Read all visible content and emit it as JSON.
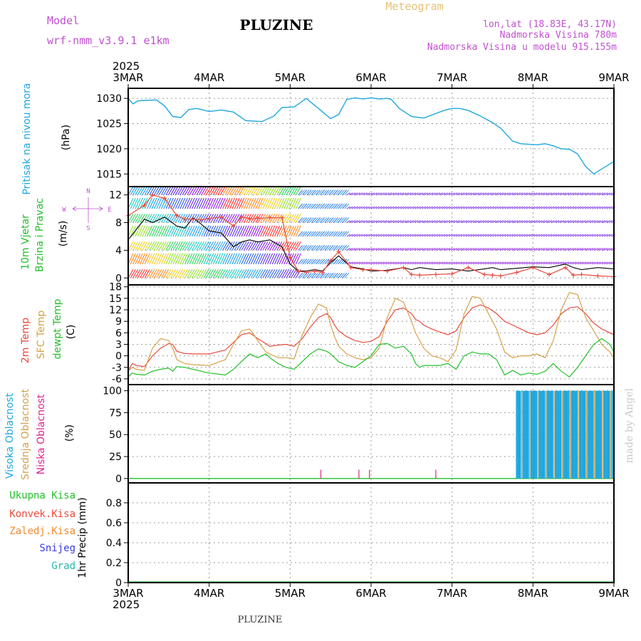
{
  "header": {
    "model_label": "Model",
    "model_name": "wrf-nmm_v3.9.1 e1km",
    "station": "PLUZINE",
    "meteogram": "Meteogram",
    "lonlat": "lon,lat (18.83E, 43.17N)",
    "altitude": "Nadmorska Visina 780m",
    "model_altitude": "Nadmorska Visina u modelu 915.155m"
  },
  "footer": {
    "station": "PLUZINE",
    "watermark": "made by Angel"
  },
  "colors": {
    "pressure": "#1ea7e0",
    "wind_speed": "#000000",
    "gust": "#e84a3c",
    "t2m": "#e84a3c",
    "sfc": "#d4a24a",
    "dewpt": "#22c02a",
    "high_cloud": "#1ea7e0",
    "mid_cloud": "#d4a24a",
    "low_cloud": "#e0248c",
    "rain": "#22c02a",
    "conv": "#e84a3c",
    "frz": "#f08a2c",
    "snow": "#3a3ae0",
    "grad": "#22b8b0",
    "wind_cmp": "#c050d0"
  },
  "chart_data": [
    {
      "type": "line",
      "panel": "pressure",
      "year": "2025",
      "x_ticks": [
        "3MAR",
        "4MAR",
        "5MAR",
        "6MAR",
        "7MAR",
        "8MAR",
        "9MAR"
      ],
      "ylabel_name": "Pritisak na nivou mora",
      "ylabel_unit": "(hPa)",
      "ylim": [
        1012.5,
        1032
      ],
      "y_ticks": [
        "1015",
        "1020",
        "1025",
        "1030"
      ],
      "grid": true,
      "x": [
        0,
        0.06,
        0.12,
        0.2,
        0.35,
        0.45,
        0.55,
        0.65,
        0.75,
        0.85,
        1.0,
        1.15,
        1.3,
        1.45,
        1.65,
        1.8,
        1.9,
        2.05,
        2.2,
        2.35,
        2.5,
        2.6,
        2.7,
        2.8,
        2.9,
        3.0,
        3.1,
        3.2,
        3.25,
        3.35,
        3.5,
        3.65,
        3.8,
        3.9,
        4.0,
        4.1,
        4.2,
        4.35,
        4.5,
        4.6,
        4.75,
        4.85,
        4.95,
        5.05,
        5.15,
        5.25,
        5.35,
        5.45,
        5.55,
        5.65,
        5.75,
        5.85,
        5.95,
        6.0
      ],
      "y": [
        1030,
        1028.9,
        1029.5,
        1029.6,
        1029.7,
        1028.5,
        1026.4,
        1026.2,
        1027.8,
        1028,
        1027.4,
        1027.7,
        1027.3,
        1025.6,
        1025.4,
        1026.5,
        1028.2,
        1028.3,
        1030,
        1028,
        1026,
        1026.8,
        1029.8,
        1030.1,
        1029.9,
        1030.1,
        1029.9,
        1030,
        1029.8,
        1028,
        1026.4,
        1026.1,
        1027,
        1027.6,
        1028,
        1028,
        1027.6,
        1026.5,
        1025.2,
        1024.1,
        1021.5,
        1021,
        1020.9,
        1020.8,
        1021,
        1020.6,
        1020,
        1019.9,
        1019,
        1016.5,
        1015,
        1016,
        1017,
        1017.5
      ],
      "series": [
        {
          "name": "Pritisak na nivou mora"
        }
      ]
    },
    {
      "type": "line",
      "panel": "wind",
      "ylabel_names": [
        "10m Vjetar",
        "Brzina i Pravac"
      ],
      "ylabel_unit": "(m/s)",
      "ylim": [
        -1,
        13.2
      ],
      "y_ticks": [
        "0",
        "4",
        "8",
        "12"
      ],
      "compass": {
        "n": "N",
        "w": "W",
        "e": "E",
        "s": "S"
      },
      "grid": true,
      "speed_x": [
        0,
        0.2,
        0.3,
        0.45,
        0.6,
        0.7,
        0.8,
        0.9,
        1.0,
        1.15,
        1.3,
        1.4,
        1.5,
        1.6,
        1.75,
        1.9,
        2.0,
        2.1,
        2.2,
        2.3,
        2.4,
        2.5,
        2.6,
        2.75,
        2.9,
        3.0,
        3.2,
        3.4,
        3.5,
        3.6,
        3.8,
        4.0,
        4.2,
        4.4,
        4.5,
        4.6,
        4.8,
        5.0,
        5.2,
        5.4,
        5.5,
        5.6,
        5.8,
        6.0
      ],
      "speed_y": [
        5.5,
        8.5,
        8,
        8.8,
        7.5,
        7.2,
        8.7,
        7.8,
        6.8,
        6.5,
        4.5,
        5.2,
        5.5,
        5.2,
        5.5,
        4.5,
        2,
        1,
        1,
        1.2,
        1,
        2.2,
        3.2,
        1.6,
        1.3,
        1,
        1.1,
        1.5,
        1.2,
        1.5,
        1.2,
        1.3,
        1,
        1.3,
        1.5,
        1.2,
        1.4,
        1.6,
        1.5,
        2,
        1.5,
        1.2,
        1.5,
        1.3
      ],
      "gust_y": [
        9,
        10.5,
        12,
        11.5,
        9,
        8.5,
        8.5,
        8.4,
        8.6,
        8.8,
        7.5,
        8.8,
        8.6,
        8.6,
        8.7,
        8.7,
        3,
        1,
        0.8,
        1,
        0.8,
        2.5,
        3.8,
        1.5,
        1.2,
        1.2,
        1,
        1.5,
        0.5,
        0.4,
        0.5,
        0.6,
        1.5,
        0.5,
        0.4,
        0.3,
        0.8,
        1.5,
        0.5,
        1.5,
        0.4,
        0.5,
        0.3,
        0.2
      ],
      "barb_levels": [
        0,
        2,
        4,
        6,
        8,
        10,
        12
      ],
      "series": [
        {
          "name": "10m Vjetar"
        }
      ]
    },
    {
      "type": "line",
      "panel": "temperature",
      "ylabel_names": [
        "2m Temp",
        "SFC Temp",
        "dewpt Temp"
      ],
      "ylabel_unit": "(C)",
      "ylim": [
        -7.5,
        18.5
      ],
      "y_ticks": [
        "-6",
        "-3",
        "0",
        "3",
        "6",
        "9",
        "12",
        "15",
        "18"
      ],
      "grid": true,
      "x": [
        0,
        0.05,
        0.1,
        0.2,
        0.3,
        0.4,
        0.5,
        0.55,
        0.6,
        0.7,
        0.8,
        1.0,
        1.2,
        1.3,
        1.4,
        1.5,
        1.6,
        1.7,
        1.75,
        1.85,
        1.95,
        2.05,
        2.15,
        2.25,
        2.35,
        2.45,
        2.5,
        2.55,
        2.6,
        2.7,
        2.8,
        2.9,
        3.0,
        3.1,
        3.2,
        3.3,
        3.4,
        3.5,
        3.55,
        3.6,
        3.65,
        3.75,
        3.85,
        3.95,
        4.05,
        4.15,
        4.25,
        4.35,
        4.45,
        4.55,
        4.65,
        4.75,
        4.85,
        4.95,
        5.05,
        5.15,
        5.25,
        5.35,
        5.45,
        5.55,
        5.65,
        5.75,
        5.85,
        5.95,
        6.0
      ],
      "t2m": [
        -4,
        -2,
        -2.5,
        -2.8,
        0,
        2,
        3.2,
        3,
        1.2,
        0.6,
        0.5,
        0.5,
        1.5,
        3.5,
        5.5,
        6,
        4.5,
        3.2,
        2.5,
        2.8,
        3,
        2.5,
        4.5,
        7.5,
        10,
        11,
        10,
        8,
        6.5,
        5,
        4,
        3.5,
        3.8,
        5,
        9,
        12,
        12.5,
        11,
        9.5,
        9,
        8,
        7,
        6.2,
        5.5,
        6.5,
        10,
        12.5,
        13.3,
        12.5,
        11,
        9,
        8,
        7,
        6,
        5.5,
        6,
        8,
        11,
        12.5,
        12.8,
        11,
        8.5,
        7,
        6,
        5.5
      ],
      "sfc": [
        -4,
        -3,
        -3.5,
        -3.8,
        2,
        4.5,
        4,
        2,
        -1,
        -2,
        -2.3,
        -2.5,
        -1,
        3,
        6.5,
        7,
        4,
        1,
        0.5,
        -0.5,
        -0.5,
        -0.8,
        5.5,
        10,
        13.5,
        12.5,
        8,
        5,
        2.5,
        0.5,
        -0.5,
        -1,
        -0.5,
        2,
        10,
        15,
        14,
        9,
        6,
        4,
        2,
        0,
        -0.5,
        -1.5,
        1.5,
        11,
        15.5,
        15,
        11,
        7,
        1,
        -0.5,
        0,
        0,
        0.5,
        -0.5,
        4,
        12,
        16.5,
        16,
        10,
        6.5,
        3,
        1,
        -0.5
      ],
      "dewpt": [
        -5.5,
        -4.5,
        -4.8,
        -5,
        -4,
        -3.5,
        -3.2,
        -4,
        -2.8,
        -3,
        -3.5,
        -4.5,
        -5,
        -3.5,
        -1.5,
        0.5,
        -0.5,
        0.5,
        -0.5,
        -2,
        -3,
        -3.5,
        -1.5,
        0.5,
        1.8,
        1.2,
        0.5,
        -0.5,
        -1.5,
        -2.5,
        -3,
        -1.5,
        0,
        3,
        3.2,
        2,
        2.5,
        0.5,
        -2,
        -3,
        -2.5,
        -2.5,
        -2.5,
        -2,
        -3.5,
        0,
        1,
        0.5,
        0.5,
        -1,
        -5,
        -3.8,
        -5,
        -4.5,
        -4.8,
        -4,
        -2,
        -4,
        -5.5,
        -3,
        0,
        3,
        4.5,
        3,
        1
      ]
    },
    {
      "type": "bar",
      "panel": "clouds",
      "ylabel_names": [
        "Visoka Oblacnost",
        "Srednja Oblacnost",
        "Niska Oblacnost"
      ],
      "ylabel_unit": "(%)",
      "ylim": [
        -5,
        107
      ],
      "y_ticks": [
        "0",
        "25",
        "50",
        "75",
        "100"
      ],
      "grid": true,
      "high_cloud": {
        "start": 4.8,
        "end": 6.0,
        "value": 100
      },
      "low_cloud_spikes": [
        {
          "x": 2.38,
          "v": 10
        },
        {
          "x": 2.85,
          "v": 10
        },
        {
          "x": 2.98,
          "v": 10
        },
        {
          "x": 3.8,
          "v": 10
        }
      ]
    },
    {
      "type": "bar",
      "panel": "precip",
      "ylabel_names": [
        "Ukupna Kisa",
        "Konvek.Kisa",
        "Zaledj.Kisa",
        "Snijeg",
        "Grad"
      ],
      "ylabel_unit": "1hr Precip (mm)",
      "ylim": [
        0,
        1.0
      ],
      "y_ticks": [
        "0",
        "0.2",
        "0.4",
        "0.6",
        "0.8"
      ],
      "grid": true,
      "values": [
        0
      ]
    }
  ]
}
